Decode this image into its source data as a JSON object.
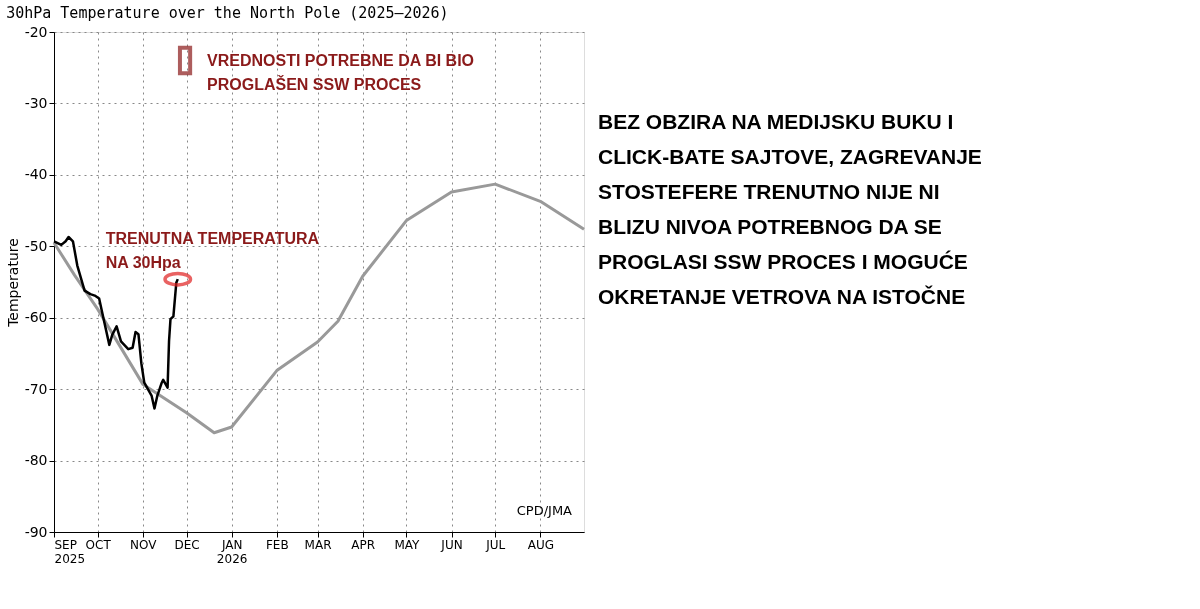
{
  "chart_data": {
    "type": "line",
    "title": "30hPa Temperature over the North Pole (2025–2026)",
    "ylabel": "Temperature",
    "xlim": [
      "2025-09-01",
      "2026-08-31"
    ],
    "xticks": [
      {
        "value": "2025-09-01",
        "label": "SEP\n2025"
      },
      {
        "value": "2025-10-01",
        "label": "OCT"
      },
      {
        "value": "2025-11-01",
        "label": "NOV"
      },
      {
        "value": "2025-12-01",
        "label": "DEC"
      },
      {
        "value": "2026-01-01",
        "label": "JAN\n2026"
      },
      {
        "value": "2026-02-01",
        "label": "FEB"
      },
      {
        "value": "2026-03-01",
        "label": "MAR"
      },
      {
        "value": "2026-04-01",
        "label": "APR"
      },
      {
        "value": "2026-05-01",
        "label": "MAY"
      },
      {
        "value": "2026-06-01",
        "label": "JUN"
      },
      {
        "value": "2026-07-01",
        "label": "JUL"
      },
      {
        "value": "2026-08-01",
        "label": "AUG"
      }
    ],
    "ylim": [
      -90,
      -20
    ],
    "yticks": [
      -90,
      -80,
      -70,
      -60,
      -50,
      -40,
      -30,
      -20
    ],
    "grid": true,
    "legend": false,
    "line_style": "solid",
    "marker": "none",
    "series": [
      {
        "color": "#999999",
        "x": [
          "2025-09-01",
          "2025-09-15",
          "2025-10-01",
          "2025-11-01",
          "2025-12-01",
          "2025-12-20",
          "2026-01-01",
          "2026-02-01",
          "2026-03-01",
          "2026-03-15",
          "2026-04-01",
          "2026-05-01",
          "2026-06-01",
          "2026-07-01",
          "2026-08-01",
          "2026-08-31"
        ],
        "values": [
          -49.5,
          -54,
          -58.8,
          -69.3,
          -73.3,
          -76.1,
          -75.3,
          -67.4,
          -63.4,
          -60.5,
          -54.2,
          -46.4,
          -42.4,
          -41.3,
          -43.7,
          -47.6
        ]
      },
      {
        "color": "#000000",
        "x": [
          "2025-09-01",
          "2025-09-06",
          "2025-09-09",
          "2025-09-11",
          "2025-09-14",
          "2025-09-17",
          "2025-09-22",
          "2025-09-26",
          "2025-09-29",
          "2025-10-02",
          "2025-10-05",
          "2025-10-09",
          "2025-10-11",
          "2025-10-14",
          "2025-10-17",
          "2025-10-22",
          "2025-10-25",
          "2025-10-27",
          "2025-10-29",
          "2025-10-31",
          "2025-11-02",
          "2025-11-07",
          "2025-11-09",
          "2025-11-11",
          "2025-11-14",
          "2025-11-15",
          "2025-11-18",
          "2025-11-19",
          "2025-11-20",
          "2025-11-22",
          "2025-11-24",
          "2025-11-25"
        ],
        "values": [
          -49.3,
          -49.8,
          -49.3,
          -48.7,
          -49.3,
          -52.7,
          -56.2,
          -56.7,
          -56.9,
          -57.3,
          -60.1,
          -63.8,
          -62.4,
          -61.2,
          -63.3,
          -64.4,
          -64.2,
          -62,
          -62.3,
          -66.4,
          -69.1,
          -70.9,
          -72.7,
          -70.9,
          -69.1,
          -68.7,
          -69.8,
          -63.3,
          -60.2,
          -59.8,
          -55.1,
          -54.6
        ]
      }
    ],
    "annotations": [
      {
        "text": "VREDNOSTI POTREBNE DA BI BIO\nPROGLAŠEN SSW PROCES",
        "x": "2025-11-30",
        "y": -24
      },
      {
        "text": "TRENUTNA TEMPERATURA\nNA 30Hpa",
        "x": "2025-11-25",
        "y": -54.6
      },
      "CPD/JMA",
      "BEZ OBZIRA NA MEDIJSKU BUKU I\nCLICK-BATE SAJTOVE, ZAGREVANJE\nSTOSTEFERE TRENUTNO NIJE NI\nBLIZU NIVOA POTREBNOG DA SE\nPROGLASI SSW PROCES I MOGUĆE\nOKRETANJE VETROVA NA ISTOČNE"
    ]
  }
}
